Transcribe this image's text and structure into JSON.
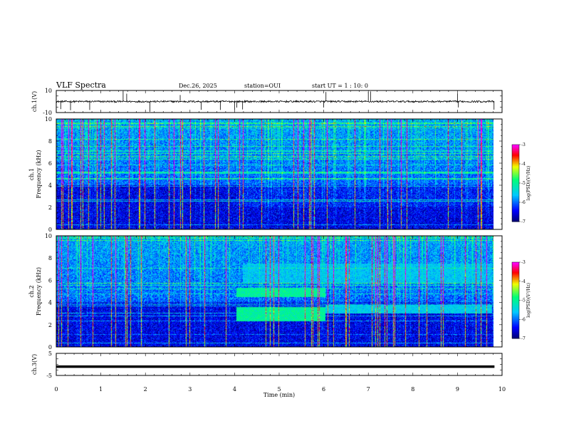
{
  "header": {
    "title": "VLF Spectra",
    "date": "Dec.26, 2025",
    "station": "station=OUI",
    "start_ut": "start  UT =  1 : 10: 0"
  },
  "chart_data": [
    {
      "id": "ch1_waveform",
      "type": "line",
      "ylabel": "ch.1(V)",
      "ylim": [
        -10,
        10
      ],
      "yticks": [
        "10",
        "-10"
      ],
      "xlim": [
        0,
        10
      ],
      "data_extent_min": 9.83,
      "baseline": 0,
      "impulse_times": [
        0.1,
        0.32,
        0.75,
        1.5,
        1.58,
        2.1,
        2.78,
        3.25,
        3.68,
        4.0,
        4.05,
        4.18,
        6.0,
        6.05,
        7.0,
        7.05,
        9.0,
        9.02,
        9.82
      ]
    },
    {
      "id": "ch1_spectrogram",
      "type": "heatmap",
      "ylabel": "ch.1\nFrequency (kHz)",
      "ylim": [
        0,
        10
      ],
      "yticks": [
        "0",
        "2",
        "4",
        "6",
        "8",
        "10"
      ],
      "xlim": [
        0,
        10
      ],
      "data_extent_min": 9.83,
      "colorbar": {
        "label": "log(PSD)(V²/Hz)",
        "range": [
          -7,
          -3
        ],
        "ticks": [
          "-3",
          "-4",
          "-5",
          "-6",
          "-7"
        ]
      },
      "features": {
        "noise_floor_log_psd": -6.5,
        "enhanced_band_khz": [
          4,
          10
        ],
        "mid_band_after_min": [
          4.1,
          2.0,
          4.0
        ]
      }
    },
    {
      "id": "ch2_spectrogram",
      "type": "heatmap",
      "ylabel": "ch.2\nFrequency (kHz)",
      "ylim": [
        0,
        10
      ],
      "yticks": [
        "0",
        "2",
        "4",
        "6",
        "8",
        "10"
      ],
      "xlim": [
        0,
        10
      ],
      "data_extent_min": 9.83,
      "colorbar": {
        "label": "log(PSD)(V²/Hz)",
        "range": [
          -7,
          -3
        ],
        "ticks": [
          "-3",
          "-4",
          "-5",
          "-6",
          "-7"
        ]
      },
      "features": {
        "emission_bands": [
          {
            "t_start_min": 4.05,
            "t_end_min": 6.05,
            "f_low_khz": 4.5,
            "f_high_khz": 5.3,
            "level": -5.0
          },
          {
            "t_start_min": 4.05,
            "t_end_min": 6.05,
            "f_low_khz": 2.3,
            "f_high_khz": 3.6,
            "level": -5.0
          },
          {
            "t_start_min": 6.05,
            "t_end_min": 9.8,
            "f_low_khz": 3.0,
            "f_high_khz": 3.8,
            "level": -5.5
          },
          {
            "t_start_min": 4.2,
            "t_end_min": 9.8,
            "f_low_khz": 5.8,
            "f_high_khz": 7.5,
            "level": -5.6
          }
        ]
      }
    },
    {
      "id": "ch3_waveform",
      "type": "line",
      "ylabel": "ch.3(V)",
      "ylim": [
        -5,
        5
      ],
      "yticks": [
        "5",
        "-5"
      ],
      "xlim": [
        0,
        10
      ],
      "data_extent_min": 9.83,
      "constant_value": -1.0
    }
  ],
  "xaxis": {
    "label": "Time (min)",
    "ticks": [
      "0",
      "1",
      "2",
      "3",
      "4",
      "5",
      "6",
      "7",
      "8",
      "9",
      "10"
    ]
  },
  "colors": {
    "colormap": [
      "#00008b",
      "#0000ff",
      "#00bfff",
      "#00ff7f",
      "#ffff00",
      "#ff0000",
      "#ff00ff"
    ]
  }
}
